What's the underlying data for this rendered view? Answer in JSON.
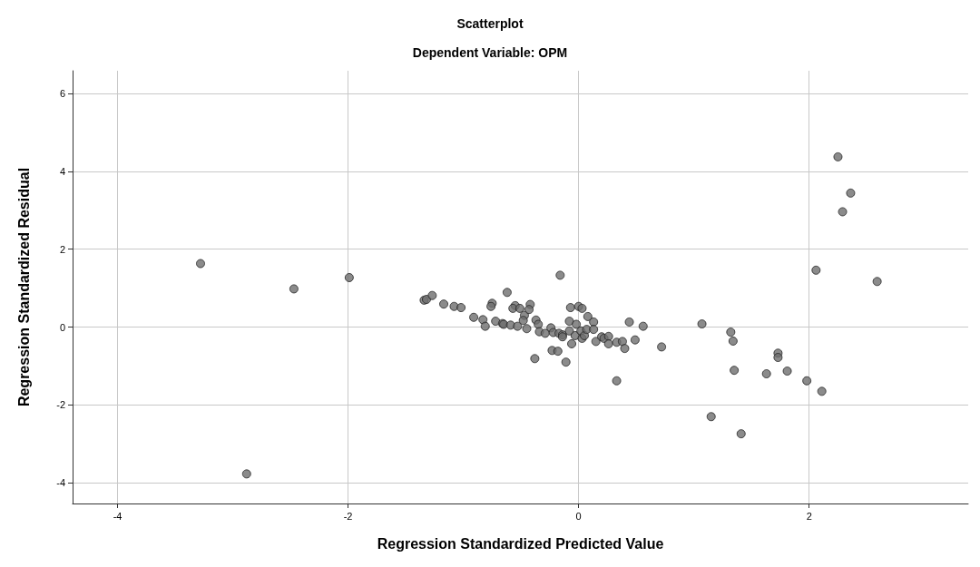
{
  "chart_data": {
    "type": "scatter",
    "title": "Scatterplot",
    "subtitle": "Dependent Variable: OPM",
    "xlabel": "Regression Standardized Predicted Value",
    "ylabel": "Regression Standardized Residual",
    "color": "#6e6e6e",
    "marker": "circle",
    "grid": true,
    "xlim": [
      -4.39,
      3.38
    ],
    "ylim": [
      -4.53,
      6.58
    ],
    "xticks": [
      -4,
      -2,
      0,
      2
    ],
    "yticks": [
      -4,
      -2,
      0,
      2,
      4,
      6
    ],
    "x": [
      -3.28,
      -2.47,
      -1.99,
      -2.88,
      2.25,
      2.36,
      2.29,
      2.06,
      2.59,
      1.07,
      1.32,
      1.34,
      0.72,
      0.56,
      0.44,
      0.49,
      1.35,
      1.15,
      1.41,
      1.63,
      1.73,
      1.73,
      1.81,
      1.98,
      2.11,
      0.33,
      -0.16,
      -0.38,
      -0.11,
      -0.23,
      -0.18,
      -0.62,
      -1.34,
      -1.32,
      -1.27,
      -1.17,
      -1.08,
      -1.02,
      -0.91,
      -0.83,
      -0.81,
      -0.75,
      -0.76,
      -0.72,
      -0.66,
      -0.65,
      -0.59,
      -0.55,
      -0.57,
      -0.51,
      -0.53,
      -0.47,
      -0.48,
      -0.45,
      -0.42,
      -0.43,
      -0.37,
      -0.35,
      -0.34,
      -0.29,
      -0.24,
      -0.22,
      -0.17,
      -0.14,
      -0.14,
      -0.08,
      -0.08,
      -0.07,
      -0.06,
      -0.03,
      -0.02,
      0.0,
      0.03,
      0.02,
      0.03,
      0.05,
      0.07,
      0.08,
      0.13,
      0.13,
      0.15,
      0.2,
      0.22,
      0.26,
      0.26,
      0.33,
      0.38,
      0.4
    ],
    "values": [
      1.63,
      0.98,
      1.27,
      -3.77,
      4.37,
      3.44,
      2.96,
      1.46,
      1.17,
      0.08,
      -0.13,
      -0.36,
      -0.51,
      0.02,
      0.13,
      -0.33,
      -1.11,
      -2.3,
      -2.74,
      -1.2,
      -0.67,
      -0.78,
      -1.13,
      -1.38,
      -1.65,
      -1.38,
      1.33,
      -0.81,
      -0.9,
      -0.6,
      -0.62,
      0.89,
      0.69,
      0.71,
      0.81,
      0.59,
      0.53,
      0.5,
      0.25,
      0.19,
      0.02,
      0.61,
      0.53,
      0.15,
      0.09,
      0.07,
      0.05,
      0.55,
      0.48,
      0.48,
      0.02,
      0.3,
      0.17,
      -0.04,
      0.58,
      0.45,
      0.18,
      0.07,
      -0.12,
      -0.16,
      -0.02,
      -0.14,
      -0.16,
      -0.2,
      -0.25,
      -0.1,
      0.15,
      0.5,
      -0.43,
      -0.22,
      0.07,
      0.53,
      0.48,
      -0.1,
      -0.29,
      -0.22,
      -0.06,
      0.27,
      0.13,
      -0.06,
      -0.37,
      -0.25,
      -0.29,
      -0.24,
      -0.43,
      -0.39,
      -0.37,
      -0.55
    ]
  }
}
